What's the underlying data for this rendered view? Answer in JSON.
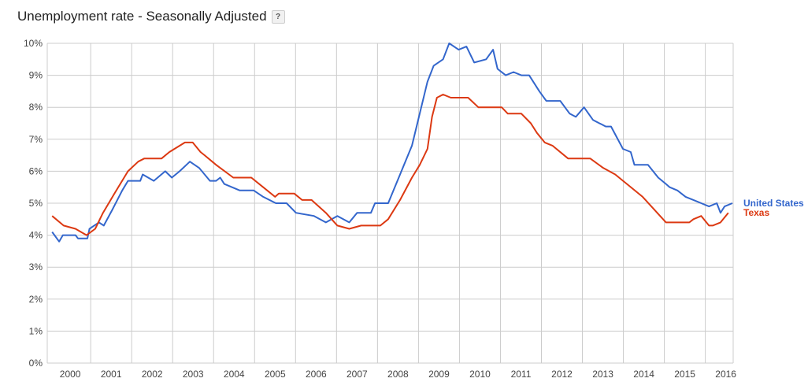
{
  "header": {
    "title": "Unemployment rate - Seasonally Adjusted",
    "help_label": "?"
  },
  "chart_data": {
    "type": "line",
    "title": "Unemployment rate - Seasonally Adjusted",
    "xlabel": "",
    "ylabel": "",
    "xlim": [
      1999.94,
      2016.68
    ],
    "ylim": [
      0,
      10
    ],
    "grid": true,
    "legend_placement": "right (end of lines)",
    "y_ticks": [
      0,
      1,
      2,
      3,
      4,
      5,
      6,
      7,
      8,
      9,
      10
    ],
    "y_tick_labels": [
      "0%",
      "1%",
      "2%",
      "3%",
      "4%",
      "5%",
      "6%",
      "7%",
      "8%",
      "9%",
      "10%"
    ],
    "x_tick_labels": [
      "2000",
      "2001",
      "2002",
      "2003",
      "2004",
      "2005",
      "2006",
      "2007",
      "2008",
      "2009",
      "2010",
      "2011",
      "2012",
      "2013",
      "2014",
      "2015",
      "2016"
    ],
    "series": [
      {
        "name": "United States",
        "color": "#3366cc",
        "points": [
          [
            2000.06,
            4.1
          ],
          [
            2000.23,
            3.8
          ],
          [
            2000.32,
            4.0
          ],
          [
            2000.63,
            4.0
          ],
          [
            2000.69,
            3.9
          ],
          [
            2000.92,
            3.9
          ],
          [
            2000.97,
            4.2
          ],
          [
            2001.2,
            4.4
          ],
          [
            2001.32,
            4.3
          ],
          [
            2001.53,
            4.8
          ],
          [
            2001.77,
            5.4
          ],
          [
            2001.91,
            5.7
          ],
          [
            2002.21,
            5.7
          ],
          [
            2002.27,
            5.9
          ],
          [
            2002.54,
            5.7
          ],
          [
            2002.82,
            6.0
          ],
          [
            2002.98,
            5.8
          ],
          [
            2003.17,
            6.0
          ],
          [
            2003.42,
            6.3
          ],
          [
            2003.65,
            6.1
          ],
          [
            2003.91,
            5.7
          ],
          [
            2004.06,
            5.7
          ],
          [
            2004.16,
            5.8
          ],
          [
            2004.26,
            5.6
          ],
          [
            2004.64,
            5.4
          ],
          [
            2004.98,
            5.4
          ],
          [
            2005.21,
            5.2
          ],
          [
            2005.52,
            5.0
          ],
          [
            2005.78,
            5.0
          ],
          [
            2006.01,
            4.7
          ],
          [
            2006.45,
            4.6
          ],
          [
            2006.74,
            4.4
          ],
          [
            2007.02,
            4.6
          ],
          [
            2007.31,
            4.4
          ],
          [
            2007.5,
            4.7
          ],
          [
            2007.84,
            4.7
          ],
          [
            2007.94,
            5.0
          ],
          [
            2008.26,
            5.0
          ],
          [
            2008.55,
            5.9
          ],
          [
            2008.84,
            6.8
          ],
          [
            2009.22,
            8.8
          ],
          [
            2009.37,
            9.3
          ],
          [
            2009.6,
            9.5
          ],
          [
            2009.75,
            10.0
          ],
          [
            2009.98,
            9.8
          ],
          [
            2010.17,
            9.9
          ],
          [
            2010.36,
            9.4
          ],
          [
            2010.65,
            9.5
          ],
          [
            2010.82,
            9.8
          ],
          [
            2010.93,
            9.2
          ],
          [
            2011.13,
            9.0
          ],
          [
            2011.32,
            9.1
          ],
          [
            2011.51,
            9.0
          ],
          [
            2011.7,
            9.0
          ],
          [
            2011.95,
            8.5
          ],
          [
            2012.12,
            8.2
          ],
          [
            2012.46,
            8.2
          ],
          [
            2012.69,
            7.8
          ],
          [
            2012.84,
            7.7
          ],
          [
            2013.04,
            8.0
          ],
          [
            2013.26,
            7.6
          ],
          [
            2013.57,
            7.4
          ],
          [
            2013.7,
            7.4
          ],
          [
            2013.99,
            6.7
          ],
          [
            2014.18,
            6.6
          ],
          [
            2014.27,
            6.2
          ],
          [
            2014.47,
            6.2
          ],
          [
            2014.6,
            6.2
          ],
          [
            2014.85,
            5.8
          ],
          [
            2015.04,
            5.6
          ],
          [
            2015.13,
            5.5
          ],
          [
            2015.32,
            5.4
          ],
          [
            2015.52,
            5.2
          ],
          [
            2015.71,
            5.1
          ],
          [
            2015.9,
            5.0
          ],
          [
            2016.09,
            4.9
          ],
          [
            2016.28,
            5.0
          ],
          [
            2016.37,
            4.7
          ],
          [
            2016.47,
            4.9
          ],
          [
            2016.66,
            5.0
          ]
        ]
      },
      {
        "name": "Texas",
        "color": "#dc3912",
        "points": [
          [
            2000.06,
            4.6
          ],
          [
            2000.34,
            4.3
          ],
          [
            2000.63,
            4.2
          ],
          [
            2000.9,
            4.0
          ],
          [
            2001.11,
            4.2
          ],
          [
            2001.3,
            4.7
          ],
          [
            2001.58,
            5.3
          ],
          [
            2001.91,
            6.0
          ],
          [
            2002.16,
            6.3
          ],
          [
            2002.31,
            6.4
          ],
          [
            2002.73,
            6.4
          ],
          [
            2002.92,
            6.6
          ],
          [
            2003.3,
            6.9
          ],
          [
            2003.49,
            6.9
          ],
          [
            2003.68,
            6.6
          ],
          [
            2003.78,
            6.5
          ],
          [
            2004.06,
            6.2
          ],
          [
            2004.48,
            5.8
          ],
          [
            2004.92,
            5.8
          ],
          [
            2005.21,
            5.5
          ],
          [
            2005.5,
            5.2
          ],
          [
            2005.59,
            5.3
          ],
          [
            2005.97,
            5.3
          ],
          [
            2006.16,
            5.1
          ],
          [
            2006.39,
            5.1
          ],
          [
            2006.74,
            4.7
          ],
          [
            2007.02,
            4.3
          ],
          [
            2007.31,
            4.2
          ],
          [
            2007.6,
            4.3
          ],
          [
            2008.07,
            4.3
          ],
          [
            2008.26,
            4.5
          ],
          [
            2008.55,
            5.1
          ],
          [
            2008.84,
            5.8
          ],
          [
            2009.03,
            6.2
          ],
          [
            2009.22,
            6.7
          ],
          [
            2009.33,
            7.7
          ],
          [
            2009.45,
            8.3
          ],
          [
            2009.6,
            8.4
          ],
          [
            2009.79,
            8.3
          ],
          [
            2010.21,
            8.3
          ],
          [
            2010.46,
            8.0
          ],
          [
            2011.03,
            8.0
          ],
          [
            2011.18,
            7.8
          ],
          [
            2011.51,
            7.8
          ],
          [
            2011.74,
            7.5
          ],
          [
            2011.89,
            7.2
          ],
          [
            2012.08,
            6.9
          ],
          [
            2012.27,
            6.8
          ],
          [
            2012.65,
            6.4
          ],
          [
            2013.19,
            6.4
          ],
          [
            2013.51,
            6.1
          ],
          [
            2013.8,
            5.9
          ],
          [
            2014.47,
            5.2
          ],
          [
            2015.04,
            4.4
          ],
          [
            2015.61,
            4.4
          ],
          [
            2015.71,
            4.5
          ],
          [
            2015.9,
            4.6
          ],
          [
            2016.09,
            4.3
          ],
          [
            2016.18,
            4.3
          ],
          [
            2016.37,
            4.4
          ],
          [
            2016.56,
            4.7
          ]
        ]
      }
    ]
  }
}
